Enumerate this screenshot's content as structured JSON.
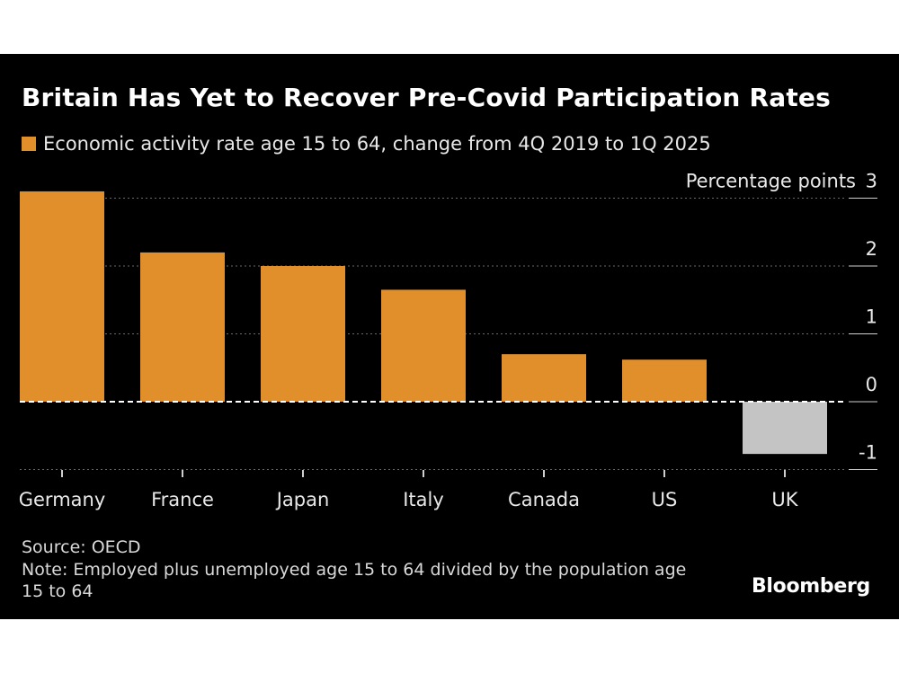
{
  "colors": {
    "background": "#000000",
    "bar_positive": "#e08f2b",
    "bar_negative": "#c4c4c4",
    "text": "#e8e8e8"
  },
  "chart_data": {
    "type": "bar",
    "title": "Britain Has Yet to Recover Pre-Covid Participation Rates",
    "legend": "Economic activity rate age 15 to 64, change from 4Q 2019 to 1Q 2025",
    "ylabel": "Percentage points",
    "categories": [
      "Germany",
      "France",
      "Japan",
      "Italy",
      "Canada",
      "US",
      "UK"
    ],
    "series": [
      {
        "name": "Economic activity rate age 15 to 64, change from 4Q 2019 to 1Q 2025",
        "values": [
          3.1,
          2.2,
          2.0,
          1.65,
          0.7,
          0.62,
          -0.77
        ]
      }
    ],
    "ylim": [
      -1,
      3
    ],
    "yticks": [
      3,
      2,
      1,
      0,
      -1
    ],
    "grid": true,
    "legend_position": "top-left"
  },
  "footer": {
    "source": "Source: OECD",
    "note": "Note: Employed plus unemployed age 15 to 64 divided by the population age 15 to 64",
    "brand": "Bloomberg"
  }
}
